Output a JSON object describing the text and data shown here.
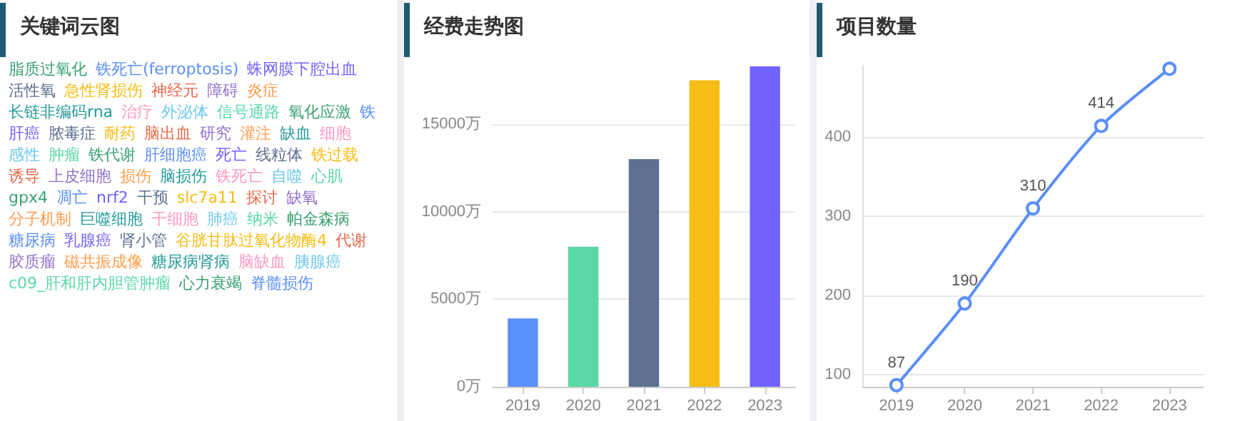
{
  "chart_data": [
    {
      "type": "other",
      "title": "关键词云图",
      "annotations": [
        "脂质过氧化",
        "铁死亡(ferroptosis)",
        "蛛网膜下腔出血",
        "活性氧",
        "急性肾损伤",
        "神经元",
        "障碍",
        "炎症",
        "长链非编码rna",
        "治疗",
        "外泌体",
        "信号通路",
        "氧化应激",
        "铁",
        "肝癌",
        "脓毒症",
        "耐药",
        "脑出血",
        "研究",
        "灌注",
        "缺血",
        "细胞",
        "感性",
        "肿瘤",
        "铁代谢",
        "肝细胞癌",
        "死亡",
        "线粒体",
        "铁过载",
        "诱导",
        "上皮细胞",
        "损伤",
        "脑损伤",
        "铁死亡",
        "自噬",
        "心肌",
        "gpx4",
        "凋亡",
        "nrf2",
        "干预",
        "slc7a11",
        "探讨",
        "缺氧",
        "分子机制",
        "巨噬细胞",
        "干细胞",
        "肺癌",
        "纳米",
        "帕金森病",
        "糖尿病",
        "乳腺癌",
        "肾小管",
        "谷胱甘肽过氧化物酶4",
        "代谢",
        "胶质瘤",
        "磁共振成像",
        "糖尿病肾病",
        "脑缺血",
        "胰腺癌",
        "c09_肝和肝内胆管肿瘤",
        "心力衰竭",
        "脊髓损伤"
      ]
    },
    {
      "type": "bar",
      "title": "经费走势图",
      "categories": [
        "2019",
        "2020",
        "2021",
        "2022",
        "2023"
      ],
      "values": [
        3900,
        8000,
        13000,
        17500,
        18300
      ],
      "colors": [
        "#5b8ff9",
        "#5ad8a6",
        "#5d7092",
        "#f6bd16",
        "#7262fd"
      ],
      "ylim": [
        0,
        18500
      ],
      "yticks": [
        {
          "value": 0,
          "label": "0万"
        },
        {
          "value": 5000,
          "label": "5000万"
        },
        {
          "value": 10000,
          "label": "10000万"
        },
        {
          "value": 15000,
          "label": "15000万"
        }
      ],
      "grid": "y"
    },
    {
      "type": "line",
      "title": "项目数量",
      "categories": [
        "2019",
        "2020",
        "2021",
        "2022",
        "2023"
      ],
      "values": [
        87,
        190,
        310,
        414,
        486
      ],
      "value_labels": [
        "87",
        "190",
        "310",
        "414",
        null
      ],
      "color": "#5b8ff9",
      "marker": "circle",
      "ylim": [
        85,
        490
      ],
      "yticks": [
        100,
        200,
        300,
        400
      ],
      "grid": "y"
    }
  ]
}
